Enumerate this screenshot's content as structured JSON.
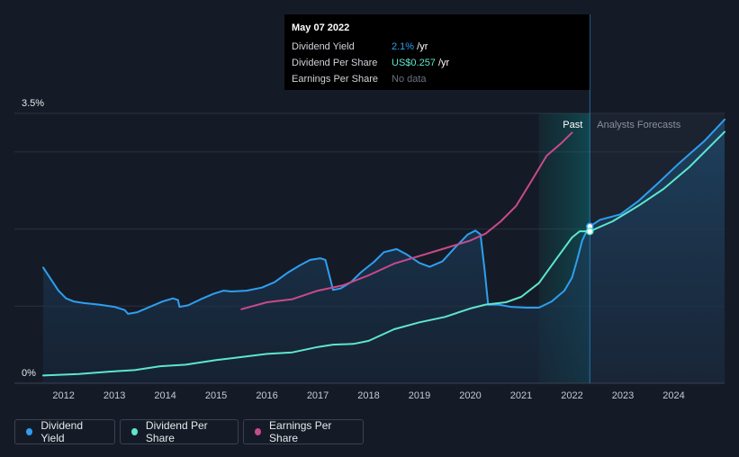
{
  "chart_data": {
    "type": "line",
    "title": "",
    "xlabel": "",
    "ylabel": "",
    "x_ticks": [
      "2012",
      "2013",
      "2014",
      "2015",
      "2016",
      "2017",
      "2018",
      "2019",
      "2020",
      "2021",
      "2022",
      "2023",
      "2024"
    ],
    "y_tick_labels": [
      "3.5%",
      "0%"
    ],
    "ylim": [
      0,
      3.5
    ],
    "xlim": [
      2011.6,
      2025.0
    ],
    "past_label": "Past",
    "forecast_label": "Analysts Forecasts",
    "forecast_start": 2022.35,
    "past_band_start": 2021.35,
    "series": [
      {
        "name": "Dividend Yield",
        "color": "#2e9ff0",
        "points": [
          [
            2011.6,
            1.5
          ],
          [
            2011.75,
            1.35
          ],
          [
            2011.9,
            1.2
          ],
          [
            2012.05,
            1.1
          ],
          [
            2012.2,
            1.06
          ],
          [
            2012.4,
            1.04
          ],
          [
            2012.7,
            1.02
          ],
          [
            2013.0,
            0.99
          ],
          [
            2013.2,
            0.95
          ],
          [
            2013.27,
            0.9
          ],
          [
            2013.45,
            0.92
          ],
          [
            2013.7,
            0.99
          ],
          [
            2013.95,
            1.06
          ],
          [
            2014.15,
            1.1
          ],
          [
            2014.25,
            1.08
          ],
          [
            2014.28,
            0.99
          ],
          [
            2014.45,
            1.01
          ],
          [
            2014.7,
            1.09
          ],
          [
            2014.95,
            1.16
          ],
          [
            2015.15,
            1.2
          ],
          [
            2015.3,
            1.19
          ],
          [
            2015.6,
            1.2
          ],
          [
            2015.9,
            1.24
          ],
          [
            2016.15,
            1.31
          ],
          [
            2016.4,
            1.43
          ],
          [
            2016.65,
            1.53
          ],
          [
            2016.85,
            1.6
          ],
          [
            2017.05,
            1.62
          ],
          [
            2017.15,
            1.6
          ],
          [
            2017.3,
            1.21
          ],
          [
            2017.45,
            1.23
          ],
          [
            2017.65,
            1.31
          ],
          [
            2017.85,
            1.44
          ],
          [
            2018.1,
            1.57
          ],
          [
            2018.3,
            1.7
          ],
          [
            2018.55,
            1.74
          ],
          [
            2018.75,
            1.67
          ],
          [
            2019.0,
            1.56
          ],
          [
            2019.2,
            1.51
          ],
          [
            2019.45,
            1.58
          ],
          [
            2019.7,
            1.76
          ],
          [
            2019.95,
            1.93
          ],
          [
            2020.1,
            1.98
          ],
          [
            2020.2,
            1.93
          ],
          [
            2020.28,
            1.47
          ],
          [
            2020.35,
            1.02
          ],
          [
            2020.55,
            1.02
          ],
          [
            2020.8,
            0.99
          ],
          [
            2021.1,
            0.98
          ],
          [
            2021.35,
            0.98
          ],
          [
            2021.6,
            1.06
          ],
          [
            2021.85,
            1.2
          ],
          [
            2022.0,
            1.37
          ],
          [
            2022.1,
            1.6
          ],
          [
            2022.2,
            1.85
          ],
          [
            2022.32,
            2.02
          ],
          [
            2022.55,
            2.12
          ],
          [
            2022.95,
            2.19
          ],
          [
            2023.3,
            2.36
          ],
          [
            2023.7,
            2.6
          ],
          [
            2024.1,
            2.85
          ],
          [
            2024.6,
            3.14
          ],
          [
            2025.0,
            3.42
          ]
        ]
      },
      {
        "name": "Dividend Per Share",
        "color": "#5ee6cf",
        "points": [
          [
            2011.6,
            0.1
          ],
          [
            2012.3,
            0.12
          ],
          [
            2012.9,
            0.15
          ],
          [
            2013.4,
            0.17
          ],
          [
            2013.9,
            0.22
          ],
          [
            2014.4,
            0.24
          ],
          [
            2015.0,
            0.3
          ],
          [
            2015.5,
            0.34
          ],
          [
            2016.0,
            0.38
          ],
          [
            2016.5,
            0.4
          ],
          [
            2017.0,
            0.47
          ],
          [
            2017.3,
            0.5
          ],
          [
            2017.7,
            0.51
          ],
          [
            2018.0,
            0.55
          ],
          [
            2018.5,
            0.7
          ],
          [
            2019.0,
            0.79
          ],
          [
            2019.5,
            0.86
          ],
          [
            2020.0,
            0.97
          ],
          [
            2020.3,
            1.02
          ],
          [
            2020.7,
            1.05
          ],
          [
            2021.0,
            1.12
          ],
          [
            2021.35,
            1.3
          ],
          [
            2021.7,
            1.62
          ],
          [
            2022.0,
            1.89
          ],
          [
            2022.15,
            1.97
          ],
          [
            2022.35,
            1.97
          ],
          [
            2022.8,
            2.1
          ],
          [
            2023.3,
            2.3
          ],
          [
            2023.8,
            2.52
          ],
          [
            2024.3,
            2.8
          ],
          [
            2025.0,
            3.26
          ]
        ]
      },
      {
        "name": "Earnings Per Share",
        "color": "#c94a8c",
        "points": [
          [
            2015.5,
            0.96
          ],
          [
            2016.0,
            1.05
          ],
          [
            2016.5,
            1.09
          ],
          [
            2017.0,
            1.2
          ],
          [
            2017.5,
            1.27
          ],
          [
            2018.0,
            1.4
          ],
          [
            2018.5,
            1.55
          ],
          [
            2019.0,
            1.65
          ],
          [
            2019.5,
            1.75
          ],
          [
            2020.0,
            1.85
          ],
          [
            2020.3,
            1.94
          ],
          [
            2020.6,
            2.1
          ],
          [
            2020.9,
            2.3
          ],
          [
            2021.2,
            2.62
          ],
          [
            2021.5,
            2.95
          ],
          [
            2021.8,
            3.12
          ],
          [
            2022.0,
            3.25
          ]
        ]
      }
    ],
    "tooltip": {
      "date": "May 07 2022",
      "rows": [
        {
          "label": "Dividend Yield",
          "value": "2.1%",
          "unit": " /yr"
        },
        {
          "label": "Dividend Per Share",
          "value": "US$0.257",
          "unit": " /yr"
        },
        {
          "label": "Earnings Per Share",
          "value": "No data",
          "unit": ""
        }
      ]
    },
    "legend": [
      "Dividend Yield",
      "Dividend Per Share",
      "Earnings Per Share"
    ]
  }
}
